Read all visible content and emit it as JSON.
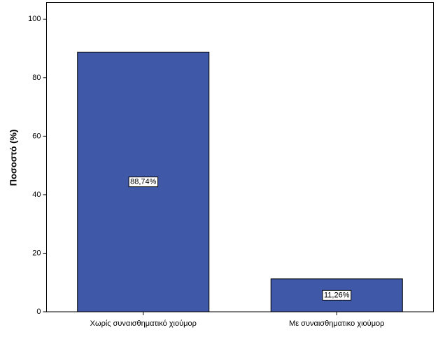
{
  "chart_data": {
    "type": "bar",
    "y_label": "Ποσοστό (%)",
    "categories": [
      "Χωρίς συναισθηματικό χιούμορ",
      "Με συναισθηματικο χιούμορ"
    ],
    "values": [
      88.74,
      11.26
    ],
    "value_labels": [
      "88,74%",
      "11,26%"
    ],
    "color": "#3f58a8",
    "ylim": [
      0,
      105.7
    ],
    "yticks": [
      0,
      20,
      40,
      60,
      80,
      100
    ],
    "grid": false
  }
}
